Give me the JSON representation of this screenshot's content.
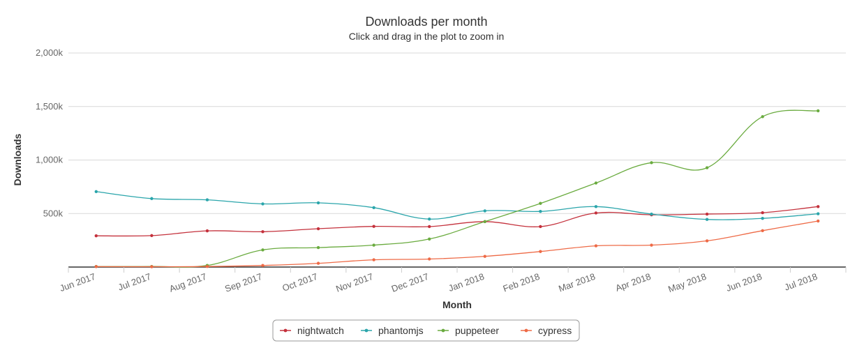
{
  "chart_data": {
    "type": "line",
    "title": "Downloads per month",
    "subtitle": "Click and drag in the plot to zoom in",
    "xlabel": "Month",
    "ylabel": "Downloads",
    "ylim": [
      0,
      2000000
    ],
    "yticks": [
      {
        "value": 500000,
        "label": "500k"
      },
      {
        "value": 1000000,
        "label": "1,000k"
      },
      {
        "value": 1500000,
        "label": "1,500k"
      },
      {
        "value": 2000000,
        "label": "2,000k"
      }
    ],
    "grid": true,
    "legend_position": "bottom",
    "categories": [
      "Jun 2017",
      "Jul 2017",
      "Aug 2017",
      "Sep 2017",
      "Oct 2017",
      "Nov 2017",
      "Dec 2017",
      "Jan 2018",
      "Feb 2018",
      "Mar 2018",
      "Apr 2018",
      "May 2018",
      "Jun 2018",
      "Jul 2018"
    ],
    "series": [
      {
        "name": "nightwatch",
        "color": "#c4313c",
        "values": [
          292000,
          294000,
          338000,
          330000,
          358000,
          380000,
          378000,
          425000,
          378000,
          505000,
          488000,
          495000,
          508000,
          565000
        ]
      },
      {
        "name": "phantomjs",
        "color": "#2aa5ab",
        "values": [
          705000,
          640000,
          628000,
          590000,
          600000,
          555000,
          448000,
          525000,
          520000,
          565000,
          495000,
          445000,
          455000,
          498000
        ]
      },
      {
        "name": "puppeteer",
        "color": "#6aab3f",
        "values": [
          5000,
          5000,
          15000,
          160000,
          182000,
          205000,
          262000,
          425000,
          595000,
          785000,
          975000,
          928000,
          1405000,
          1460000
        ]
      },
      {
        "name": "cypress",
        "color": "#ee6a46",
        "values": [
          4000,
          3000,
          5000,
          15000,
          35000,
          68000,
          75000,
          100000,
          145000,
          198000,
          205000,
          245000,
          340000,
          430000
        ]
      }
    ]
  }
}
